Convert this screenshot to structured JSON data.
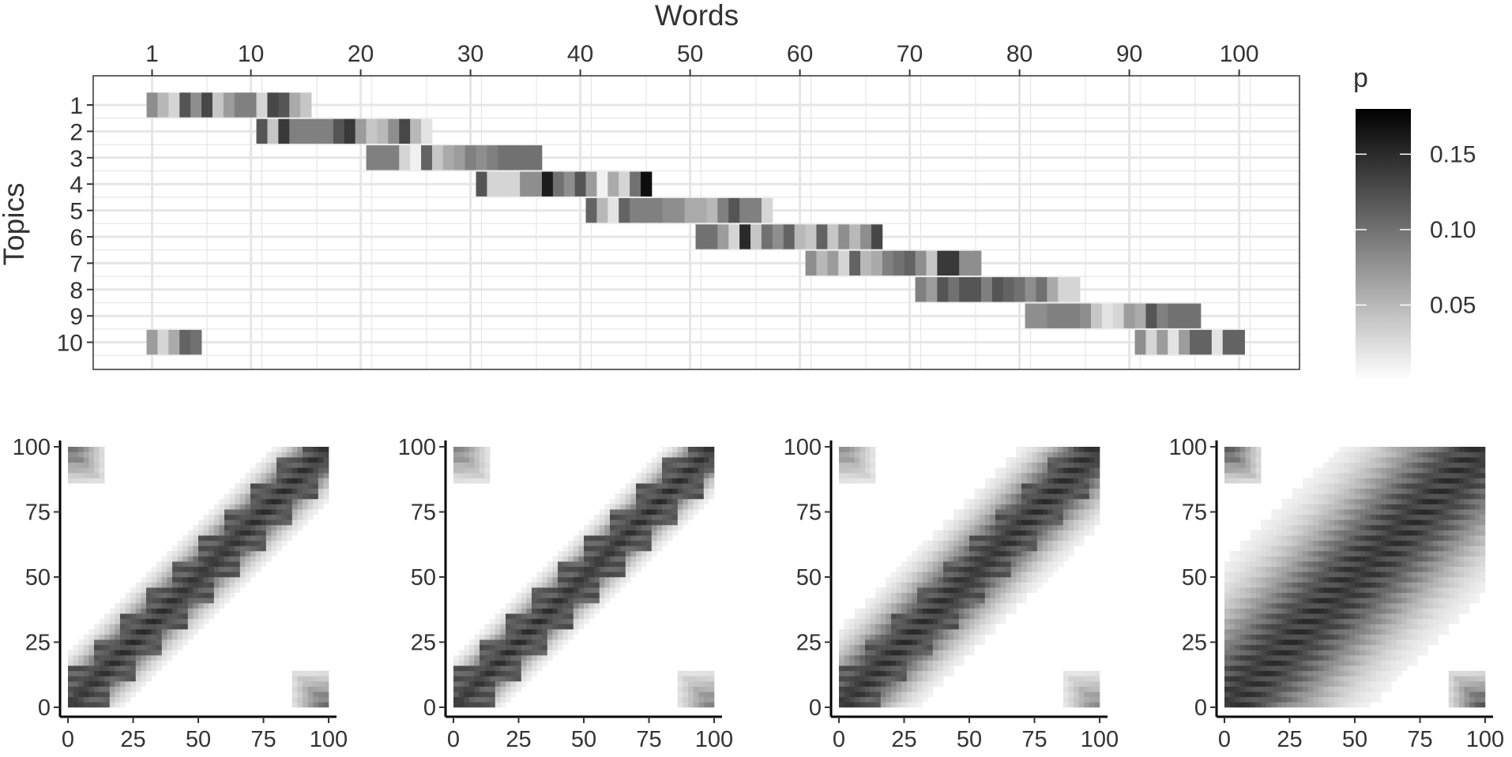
{
  "chart_data": [
    {
      "type": "heatmap",
      "title": "",
      "xlabel": "Words",
      "ylabel": "Topics",
      "x_ticks": [
        1,
        10,
        20,
        30,
        40,
        50,
        60,
        70,
        80,
        90,
        100
      ],
      "x_axis_position": "top",
      "xlim": [
        1,
        100
      ],
      "y_categories": [
        "1",
        "2",
        "3",
        "4",
        "5",
        "6",
        "7",
        "8",
        "9",
        "10"
      ],
      "grid": true,
      "legend": {
        "title": "p",
        "ticks": [
          0.05,
          0.1,
          0.15
        ],
        "tick_labels": [
          "0.05",
          "0.10",
          "0.15"
        ],
        "range": [
          0,
          0.18
        ],
        "colors": [
          "#ffffff",
          "#000000"
        ],
        "position": "right"
      },
      "rows": [
        {
          "topic": "1",
          "start": 1,
          "values": [
            0.08,
            0.05,
            0.03,
            0.12,
            0.08,
            0.13,
            0.04,
            0.07,
            0.09,
            0.09,
            0.03,
            0.13,
            0.12,
            0.06,
            0.04
          ]
        },
        {
          "topic": "2",
          "start": 11,
          "values": [
            0.12,
            0.04,
            0.14,
            0.09,
            0.09,
            0.09,
            0.09,
            0.12,
            0.14,
            0.07,
            0.04,
            0.05,
            0.08,
            0.13,
            0.05,
            0.02
          ]
        },
        {
          "topic": "3",
          "start": 21,
          "values": [
            0.09,
            0.09,
            0.09,
            0.03,
            0.01,
            0.11,
            0.04,
            0.06,
            0.07,
            0.09,
            0.08,
            0.09,
            0.1,
            0.1,
            0.1,
            0.1
          ]
        },
        {
          "topic": "4",
          "start": 31,
          "values": [
            0.12,
            0.03,
            0.03,
            0.03,
            0.08,
            0.08,
            0.16,
            0.1,
            0.08,
            0.12,
            0.07,
            0.01,
            0.06,
            0.03,
            0.1,
            0.17
          ]
        },
        {
          "topic": "5",
          "start": 41,
          "values": [
            0.11,
            0.05,
            0.02,
            0.11,
            0.09,
            0.09,
            0.09,
            0.08,
            0.08,
            0.06,
            0.06,
            0.05,
            0.09,
            0.12,
            0.09,
            0.09,
            0.03
          ]
        },
        {
          "topic": "6",
          "start": 51,
          "values": [
            0.1,
            0.1,
            0.07,
            0.03,
            0.15,
            0.04,
            0.1,
            0.08,
            0.11,
            0.05,
            0.04,
            0.11,
            0.04,
            0.08,
            0.05,
            0.08,
            0.13
          ]
        },
        {
          "topic": "7",
          "start": 61,
          "values": [
            0.08,
            0.05,
            0.07,
            0.03,
            0.11,
            0.05,
            0.06,
            0.09,
            0.1,
            0.11,
            0.08,
            0.04,
            0.14,
            0.14,
            0.08,
            0.08
          ]
        },
        {
          "topic": "8",
          "start": 71,
          "values": [
            0.09,
            0.07,
            0.12,
            0.1,
            0.12,
            0.12,
            0.09,
            0.12,
            0.11,
            0.1,
            0.08,
            0.1,
            0.06,
            0.03,
            0.03
          ]
        },
        {
          "topic": "9",
          "start": 81,
          "values": [
            0.08,
            0.08,
            0.09,
            0.09,
            0.09,
            0.08,
            0.04,
            0.02,
            0.03,
            0.07,
            0.06,
            0.12,
            0.09,
            0.1,
            0.1,
            0.1
          ]
        },
        {
          "topic": "10",
          "start": 1,
          "values": [
            0.07,
            0.03,
            0.06,
            0.11,
            0.1
          ]
        },
        {
          "topic": "10",
          "start": 91,
          "values": [
            0.08,
            0.03,
            0.07,
            0.02,
            0.07,
            0.11,
            0.11,
            0.02,
            0.11,
            0.11
          ]
        }
      ]
    },
    {
      "type": "heatmap",
      "xlim": [
        0,
        100
      ],
      "ylim": [
        0,
        100
      ],
      "x_ticks": [
        0,
        25,
        50,
        75,
        100
      ],
      "y_ticks": [
        0,
        25,
        50,
        75,
        100
      ],
      "band_halfwidth": 9,
      "corner_intensity": 0.7
    },
    {
      "type": "heatmap",
      "xlim": [
        0,
        100
      ],
      "ylim": [
        0,
        100
      ],
      "x_ticks": [
        0,
        25,
        50,
        75,
        100
      ],
      "y_ticks": [
        0,
        25,
        50,
        75,
        100
      ],
      "band_halfwidth": 8,
      "corner_intensity": 0.6
    },
    {
      "type": "heatmap",
      "xlim": [
        0,
        100
      ],
      "ylim": [
        0,
        100
      ],
      "x_ticks": [
        0,
        25,
        50,
        75,
        100
      ],
      "y_ticks": [
        0,
        25,
        50,
        75,
        100
      ],
      "band_halfwidth": 13,
      "corner_intensity": 0.55
    },
    {
      "type": "heatmap",
      "xlim": [
        0,
        100
      ],
      "ylim": [
        0,
        100
      ],
      "x_ticks": [
        0,
        25,
        50,
        75,
        100
      ],
      "y_ticks": [
        0,
        25,
        50,
        75,
        100
      ],
      "band_halfwidth": 24,
      "corner_intensity": 0.8
    }
  ]
}
